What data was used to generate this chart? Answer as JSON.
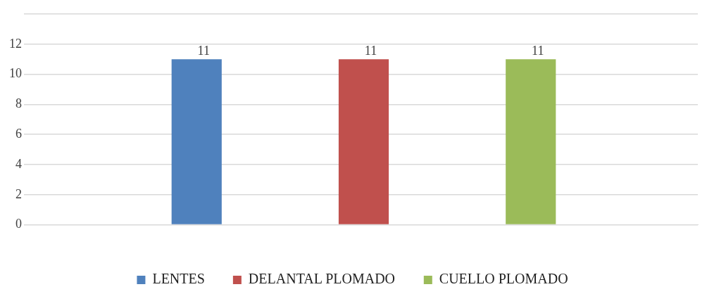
{
  "chart_data": {
    "type": "bar",
    "categories": [
      null
    ],
    "series": [
      {
        "name": "LENTES",
        "color": "#4f81bd",
        "values": [
          11
        ]
      },
      {
        "name": "DELANTAL PLOMADO",
        "color": "#c0504d",
        "values": [
          11
        ]
      },
      {
        "name": "CUELLO PLOMADO",
        "color": "#9bbb59",
        "values": [
          11
        ]
      }
    ],
    "ylim": [
      0,
      14
    ],
    "yticks": [
      0,
      2,
      4,
      6,
      8,
      10,
      12,
      {
        "value": 14,
        "label": null
      }
    ],
    "grid": "y",
    "legend": "bottom",
    "data_labels": true
  }
}
